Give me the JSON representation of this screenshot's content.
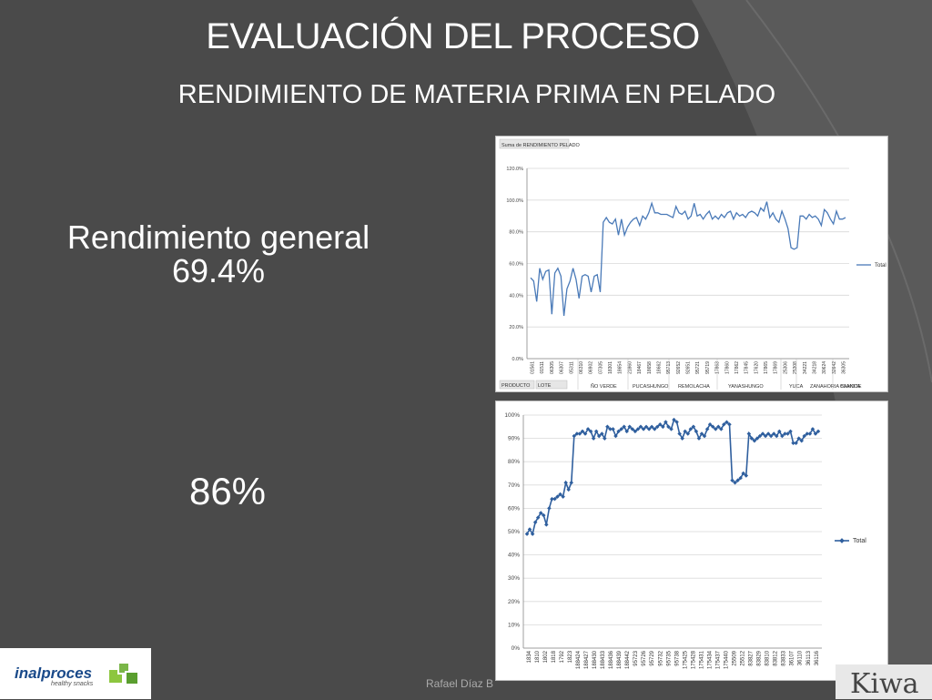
{
  "slide": {
    "title": "EVALUACIÓN DEL PROCESO",
    "subtitle": "RENDIMIENTO DE MATERIA PRIMA EN PELADO",
    "rendimiento_label": "Rendimiento  general",
    "rendimiento_value": "69.4%",
    "second_value": "86%",
    "author": "Rafael Díaz B",
    "logo_name": "inalproces",
    "logo_tagline": "healthy snacks",
    "partner_logo": "Kiwa"
  },
  "colors": {
    "background": "#4a4a4a",
    "series": "#4a7ab8",
    "series2": "#2f5f9e",
    "grid": "#d9d9d9"
  },
  "chart_data": [
    {
      "type": "line",
      "title": "Suma de RENDIMIENTO PELADO",
      "ylim": [
        0,
        120
      ],
      "yticks": [
        "0.0%",
        "20.0%",
        "40.0%",
        "60.0%",
        "80.0%",
        "100.0%",
        "120.0%"
      ],
      "x_labels": [
        "01561",
        "01511",
        "06305",
        "06307",
        "05311",
        "06310",
        "06902",
        "07305",
        "18301",
        "18654",
        "21860",
        "18467",
        "18658",
        "18662",
        "95713",
        "92652",
        "92651",
        "95721",
        "95719",
        "17863",
        "17860",
        "17862",
        "17845",
        "17620",
        "17865",
        "17869",
        "25306",
        "25308",
        "34221",
        "34218",
        "30624",
        "32642",
        "36305"
      ],
      "field_buttons": [
        "PRODUCTO",
        "LOTE"
      ],
      "group_labels": [
        "ÑO VERDE",
        "PUCASHUNGO",
        "REMOLACHA",
        "YANASHUNGO",
        "YUCA",
        "ZANAHORIA BLANCA",
        "CAMOTE"
      ],
      "series": [
        {
          "name": "Total",
          "values": [
            51,
            49,
            36,
            57,
            50,
            55,
            56,
            28,
            54,
            57,
            52,
            27,
            44,
            49,
            57,
            50,
            38,
            52,
            53,
            52,
            42,
            52,
            53,
            42,
            86,
            89,
            86,
            85,
            88,
            78,
            88,
            78,
            83,
            86,
            88,
            89,
            84,
            90,
            88,
            92,
            98,
            92,
            92,
            91,
            91,
            91,
            90,
            89,
            96,
            92,
            91,
            93,
            88,
            90,
            98,
            90,
            91,
            88,
            91,
            93,
            88,
            90,
            88,
            91,
            89,
            92,
            93,
            88,
            92,
            90,
            91,
            89,
            92,
            93,
            92,
            90,
            95,
            93,
            99,
            89,
            92,
            88,
            86,
            93,
            88,
            82,
            70,
            69,
            70,
            90,
            90,
            88,
            91,
            89,
            90,
            88,
            84,
            94,
            92,
            88,
            85,
            93,
            88,
            88,
            89
          ]
        }
      ]
    },
    {
      "type": "line",
      "ylim": [
        0,
        100
      ],
      "yticks": [
        "0%",
        "10%",
        "20%",
        "30%",
        "40%",
        "50%",
        "60%",
        "70%",
        "80%",
        "90%",
        "100%"
      ],
      "x_labels": [
        "1834",
        "1810",
        "1802",
        "1818",
        "1792",
        "1823",
        "188424",
        "188427",
        "188430",
        "188433",
        "188436",
        "188439",
        "188442",
        "95723",
        "95726",
        "95729",
        "95732",
        "95735",
        "95738",
        "175425",
        "175428",
        "175431",
        "175434",
        "175437",
        "175440",
        "25509",
        "25512",
        "83827",
        "83829",
        "83810",
        "83812",
        "83833",
        "36107",
        "36110",
        "36113",
        "36116"
      ],
      "series": [
        {
          "name": "Total",
          "values": [
            49,
            51,
            49,
            54,
            56,
            58,
            57,
            53,
            60,
            64,
            64,
            65,
            66,
            65,
            71,
            68,
            71,
            91,
            92,
            92,
            93,
            92,
            94,
            93,
            90,
            93,
            91,
            92,
            90,
            95,
            94,
            94,
            91,
            93,
            94,
            95,
            93,
            95,
            94,
            93,
            94,
            95,
            94,
            95,
            94,
            95,
            94,
            95,
            96,
            95,
            97,
            95,
            94,
            98,
            97,
            92,
            90,
            93,
            92,
            94,
            95,
            93,
            90,
            92,
            91,
            94,
            96,
            95,
            94,
            95,
            94,
            96,
            97,
            96,
            72,
            71,
            72,
            73,
            75,
            74,
            92,
            90,
            89,
            90,
            91,
            92,
            91,
            92,
            91,
            92,
            91,
            93,
            91,
            92,
            92,
            93,
            88,
            88,
            90,
            89,
            91,
            92,
            92,
            94,
            92,
            93
          ]
        }
      ]
    }
  ]
}
